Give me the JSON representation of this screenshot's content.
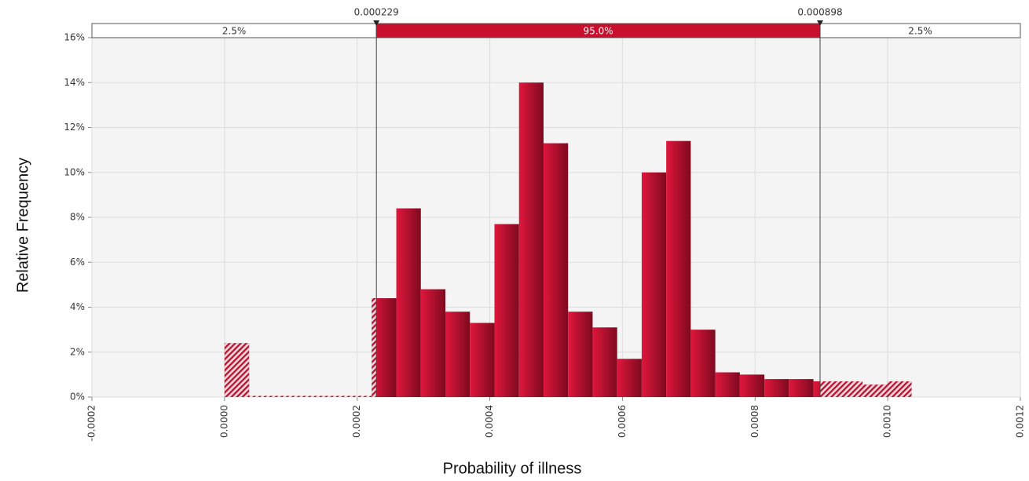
{
  "chart_data": {
    "type": "histogram",
    "y_label": "Relative Frequency",
    "x_label": "Probability of illness",
    "bins": [
      0,
      3.7e-05,
      7.4e-05,
      0.000111,
      0.000148,
      0.000185,
      0.000222,
      0.000259,
      0.000296,
      0.000333,
      0.00037,
      0.000407,
      0.000444,
      0.000481,
      0.000518,
      0.000555,
      0.000592,
      0.000629,
      0.000666,
      0.000703,
      0.00074,
      0.000777,
      0.000814,
      0.000851,
      0.000888,
      0.000925,
      0.000962,
      0.000999,
      0.001036
    ],
    "values": [
      2.4,
      0,
      0,
      0,
      0,
      0,
      4.4,
      8.4,
      4.8,
      3.8,
      3.3,
      7.7,
      14.0,
      11.3,
      3.8,
      3.1,
      1.7,
      10.0,
      11.4,
      3.0,
      1.1,
      1.0,
      0.8,
      0.8,
      0.7,
      0.7,
      0.55,
      0.7
    ],
    "color": "#c8102e",
    "delimiters": [
      0.000229,
      0.000898
    ],
    "region_labels": [
      "2.5%",
      "95.0%",
      "2.5%"
    ],
    "xlim": [
      -0.0002,
      0.0012
    ],
    "xticks": [
      {
        "value": -0.0002,
        "label": "-0.0002"
      },
      {
        "value": 0,
        "label": "0.0000"
      },
      {
        "value": 0.0002,
        "label": "0.0002"
      },
      {
        "value": 0.0004,
        "label": "0.0004"
      },
      {
        "value": 0.0006,
        "label": "0.0006"
      },
      {
        "value": 0.0008,
        "label": "0.0008"
      },
      {
        "value": 0.001,
        "label": "0.0010"
      },
      {
        "value": 0.0012,
        "label": "0.0012"
      }
    ],
    "ylim": [
      0,
      16
    ],
    "yticks": [
      {
        "value": 0,
        "label": "0%"
      },
      {
        "value": 2,
        "label": "2%"
      },
      {
        "value": 4,
        "label": "4%"
      },
      {
        "value": 6,
        "label": "6%"
      },
      {
        "value": 8,
        "label": "8%"
      },
      {
        "value": 10,
        "label": "10%"
      },
      {
        "value": 12,
        "label": "12%"
      },
      {
        "value": 14,
        "label": "14%"
      },
      {
        "value": 16,
        "label": "16%"
      }
    ],
    "grid": true
  }
}
